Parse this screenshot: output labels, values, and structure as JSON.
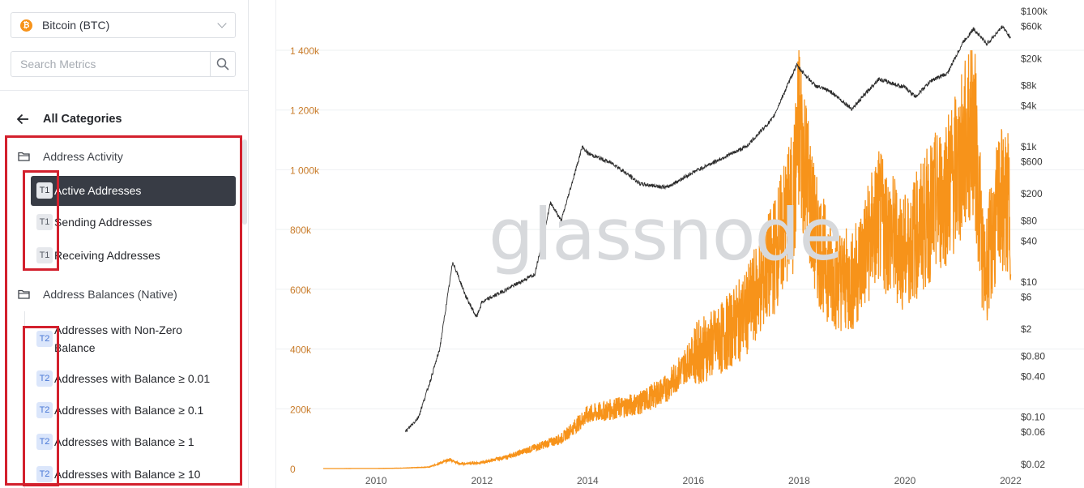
{
  "sidebar": {
    "asset": {
      "label": "Bitcoin (BTC)",
      "icon": "bitcoin-icon",
      "icon_glyph": "₿"
    },
    "search": {
      "placeholder": "Search Metrics",
      "value": ""
    },
    "back_label": "All Categories",
    "categories": [
      {
        "label": "Address Activity",
        "icon": "folder-icon",
        "metrics": [
          {
            "tier": "T1",
            "name": "Active Addresses",
            "active": true
          },
          {
            "tier": "T1",
            "name": "Sending Addresses",
            "active": false
          },
          {
            "tier": "T1",
            "name": "Receiving Addresses",
            "active": false
          }
        ]
      },
      {
        "label": "Address Balances (Native)",
        "icon": "folder-icon",
        "metrics": [
          {
            "tier": "T2",
            "name": "Addresses with Non-Zero Balance",
            "active": false
          },
          {
            "tier": "T2",
            "name": "Addresses with Balance ≥ 0.01",
            "active": false
          },
          {
            "tier": "T2",
            "name": "Addresses with Balance ≥ 0.1",
            "active": false
          },
          {
            "tier": "T2",
            "name": "Addresses with Balance ≥ 1",
            "active": false
          },
          {
            "tier": "T2",
            "name": "Addresses with Balance ≥ 10",
            "active": false
          }
        ]
      }
    ]
  },
  "colors": {
    "accent_orange": "#f7931a",
    "price_line": "#2b2b2b",
    "highlight_red": "#d3202d",
    "active_bg": "#383c45"
  },
  "chart_data": {
    "type": "line",
    "watermark": "glassnode",
    "x_ticks": [
      "2010",
      "2012",
      "2014",
      "2016",
      "2018",
      "2020",
      "2022"
    ],
    "x_range": [
      2009.0,
      2022.1
    ],
    "y_left": {
      "ticks": [
        "0",
        "200k",
        "400k",
        "600k",
        "800k",
        "1 000k",
        "1 200k",
        "1 400k"
      ],
      "values": [
        0,
        200000,
        400000,
        600000,
        800000,
        1000000,
        1200000,
        1400000
      ],
      "range": [
        0,
        1400000
      ],
      "color": "#c97c2a"
    },
    "y_right": {
      "scale": "log",
      "ticks": [
        "$0.02",
        "$0.06",
        "$0.10",
        "$0.40",
        "$0.80",
        "$2",
        "$6",
        "$10",
        "$40",
        "$80",
        "$200",
        "$600",
        "$1k",
        "$4k",
        "$8k",
        "$20k",
        "$60k",
        "$100k"
      ],
      "values": [
        0.02,
        0.06,
        0.1,
        0.4,
        0.8,
        2,
        6,
        10,
        40,
        80,
        200,
        600,
        1000,
        4000,
        8000,
        20000,
        60000,
        100000
      ],
      "color": "#3a3a3a"
    },
    "series": [
      {
        "color": "#f7931a",
        "axis": "left",
        "x": [
          2009.0,
          2010.0,
          2010.5,
          2011.0,
          2011.4,
          2011.6,
          2012.0,
          2012.5,
          2013.0,
          2013.5,
          2014.0,
          2014.5,
          2015.0,
          2015.5,
          2016.0,
          2016.5,
          2017.0,
          2017.5,
          2017.9,
          2018.0,
          2018.3,
          2018.6,
          2019.0,
          2019.5,
          2020.0,
          2020.5,
          2021.0,
          2021.3,
          2021.5,
          2021.8,
          2022.0
        ],
        "y": [
          0,
          300,
          1500,
          5000,
          30000,
          15000,
          20000,
          40000,
          70000,
          100000,
          180000,
          200000,
          220000,
          270000,
          380000,
          430000,
          520000,
          700000,
          900000,
          1150000,
          780000,
          650000,
          620000,
          840000,
          720000,
          860000,
          1000000,
          1160000,
          640000,
          900000,
          870000
        ]
      },
      {
        "color": "#2b2b2b",
        "axis": "right",
        "x": [
          2010.55,
          2010.8,
          2011.0,
          2011.2,
          2011.45,
          2011.7,
          2011.9,
          2012.0,
          2012.5,
          2013.0,
          2013.3,
          2013.5,
          2013.9,
          2014.0,
          2014.5,
          2015.0,
          2015.5,
          2016.0,
          2016.5,
          2017.0,
          2017.5,
          2017.95,
          2018.3,
          2018.6,
          2019.0,
          2019.5,
          2020.0,
          2020.2,
          2020.5,
          2020.8,
          2021.1,
          2021.3,
          2021.55,
          2021.85,
          2022.0
        ],
        "y": [
          0.06,
          0.1,
          0.3,
          1.0,
          20,
          6,
          3,
          5,
          8,
          13,
          150,
          80,
          1000,
          800,
          550,
          280,
          250,
          420,
          650,
          1000,
          2600,
          16000,
          8000,
          6500,
          3600,
          10000,
          7500,
          5500,
          9500,
          12000,
          35000,
          55000,
          33000,
          60000,
          40000
        ]
      }
    ]
  }
}
